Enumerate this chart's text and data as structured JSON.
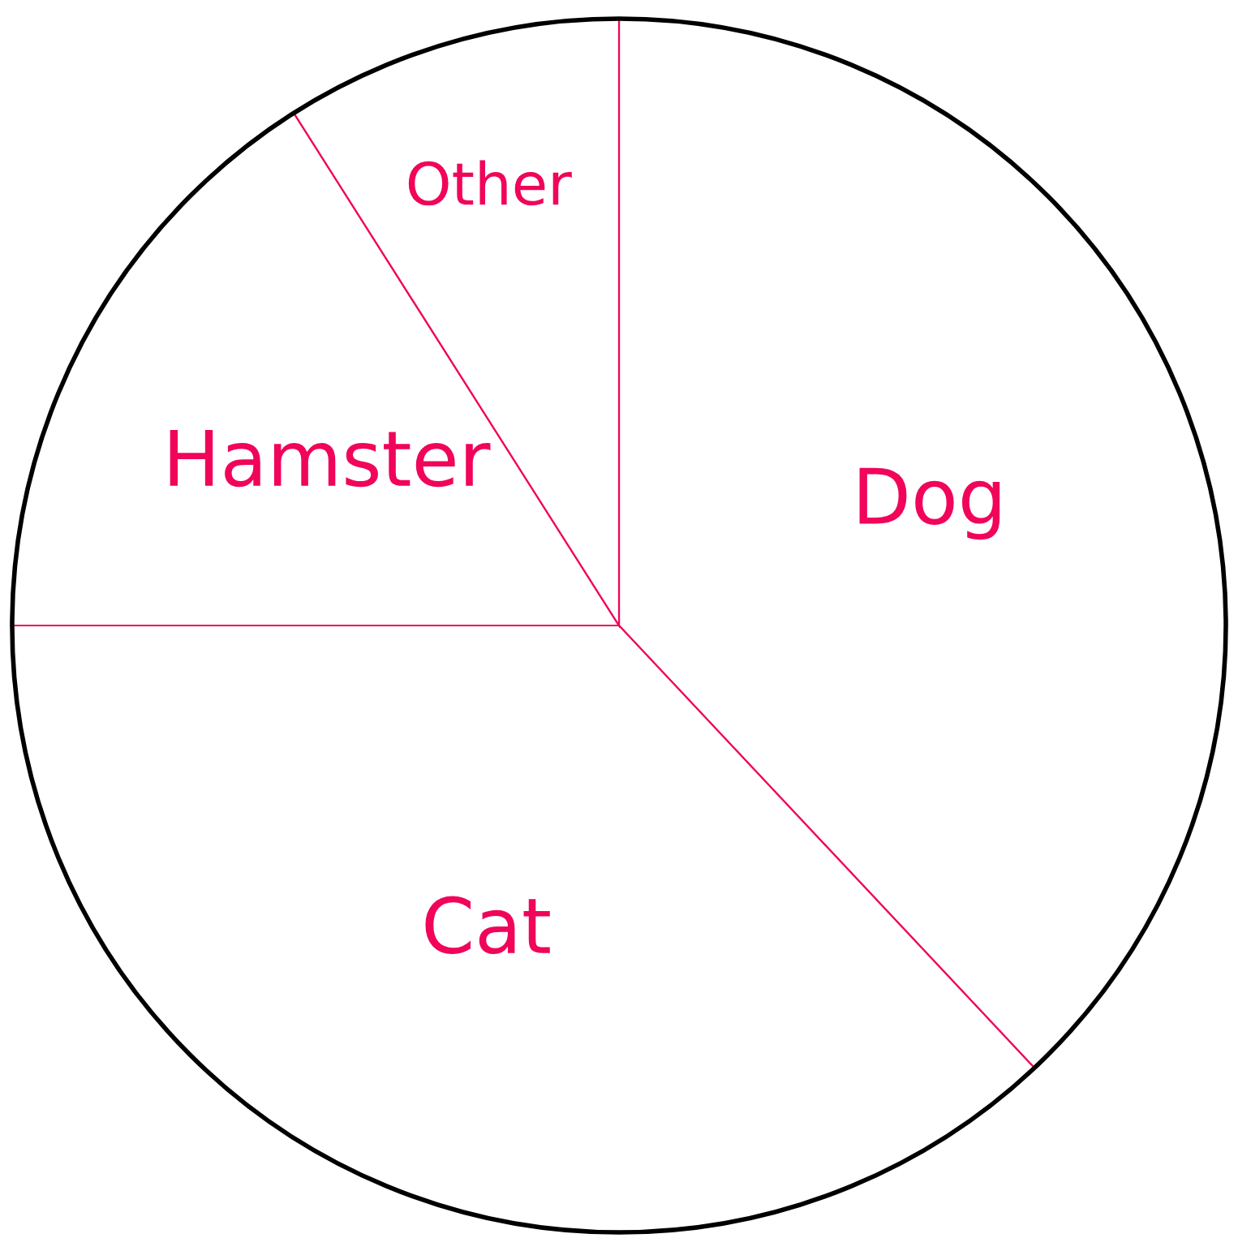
{
  "chart_data": {
    "type": "pie",
    "categories": [
      "Dog",
      "Cat",
      "Hamster",
      "Other"
    ],
    "values": [
      38,
      37,
      16,
      9
    ],
    "colors": [
      "#ffffff",
      "#ffffff",
      "#ffffff",
      "#ffffff"
    ]
  }
}
